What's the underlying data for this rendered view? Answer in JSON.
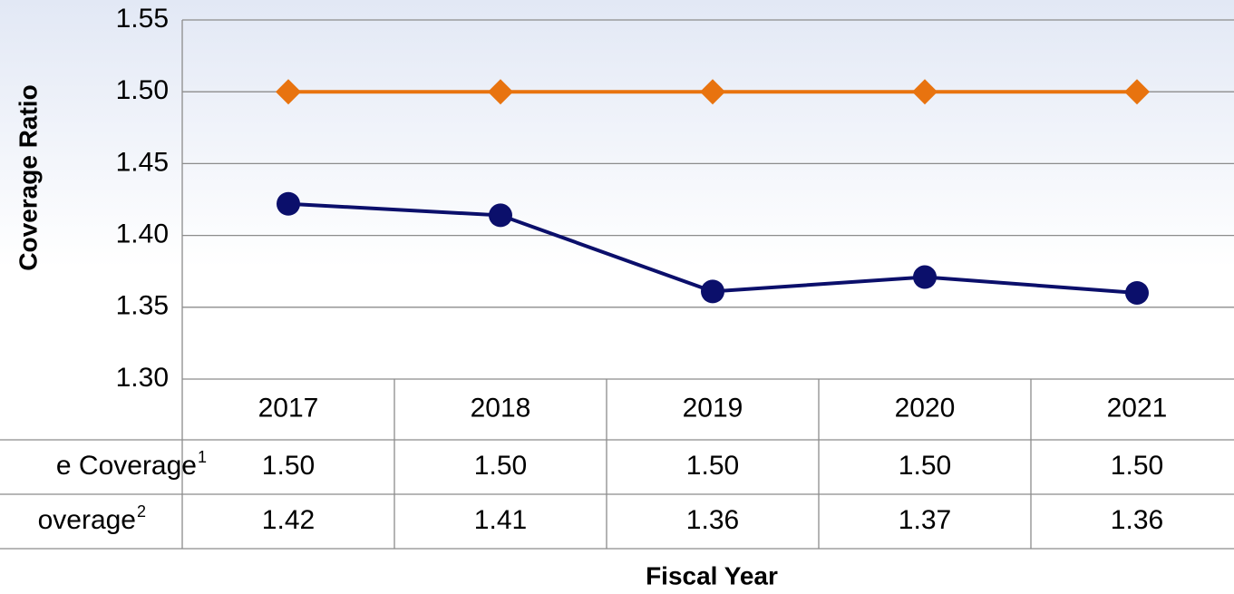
{
  "chart_data": {
    "type": "line",
    "y_axis_label": "Coverage Ratio",
    "x_axis_label": "Fiscal Year",
    "categories": [
      "2017",
      "2018",
      "2019",
      "2020",
      "2021"
    ],
    "ylim": [
      1.3,
      1.55
    ],
    "yticks": [
      {
        "value": 1.3,
        "label": "1.30"
      },
      1.35,
      {
        "value": 1.4,
        "label": "1.40"
      },
      1.45,
      {
        "value": 1.5,
        "label": "1.50"
      },
      1.55
    ],
    "grid": true,
    "series": [
      {
        "name": "e Coverage",
        "footnote": "1",
        "color": "#e8730f",
        "marker": "diamond",
        "values": [
          1.5,
          1.5,
          1.5,
          1.5,
          1.5
        ],
        "value_labels": [
          "1.50",
          "1.50",
          "1.50",
          "1.50",
          "1.50"
        ]
      },
      {
        "name": "overage",
        "footnote": "2",
        "color": "#0b0f6b",
        "marker": "circle",
        "values": [
          1.422,
          1.414,
          1.361,
          1.371,
          1.36
        ],
        "value_labels": [
          "1.42",
          "1.41",
          "1.36",
          "1.37",
          "1.36"
        ]
      }
    ]
  }
}
